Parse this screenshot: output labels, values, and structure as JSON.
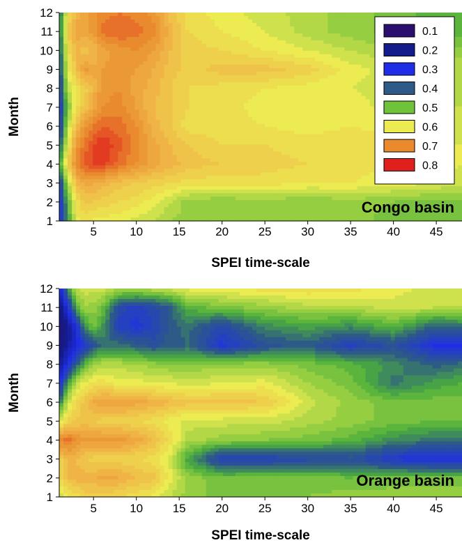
{
  "chart_data": [
    {
      "type": "heatmap",
      "annotation": "Congo basin",
      "xlabel": "SPEI time-scale",
      "ylabel": "Month",
      "xlim": [
        1,
        48
      ],
      "ylim": [
        1,
        12
      ],
      "xticks": [
        "5",
        "10",
        "15",
        "20",
        "25",
        "30",
        "35",
        "40",
        "45"
      ],
      "yticks": [
        "1",
        "2",
        "3",
        "4",
        "5",
        "6",
        "7",
        "8",
        "9",
        "10",
        "11",
        "12"
      ],
      "legend": {
        "placement": "top-right",
        "entries": [
          {
            "label": "0.1",
            "color": "#2a0f6e"
          },
          {
            "label": "0.2",
            "color": "#141c8c"
          },
          {
            "label": "0.3",
            "color": "#1f2ee6"
          },
          {
            "label": "0.4",
            "color": "#2d5a86"
          },
          {
            "label": "0.5",
            "color": "#6ec33a"
          },
          {
            "label": "0.6",
            "color": "#ecec52"
          },
          {
            "label": "0.7",
            "color": "#e98a2e"
          },
          {
            "label": "0.8",
            "color": "#e0201c"
          }
        ]
      },
      "x_samples": [
        1,
        2,
        3,
        4,
        5,
        6,
        8,
        10,
        12,
        14,
        16,
        20,
        25,
        30,
        35,
        40,
        45,
        48
      ],
      "y_samples": [
        1,
        2,
        3,
        4,
        5,
        6,
        7,
        8,
        9,
        10,
        11,
        12
      ],
      "values": [
        [
          0.3,
          0.45,
          0.58,
          0.6,
          0.58,
          0.58,
          0.58,
          0.56,
          0.55,
          0.53,
          0.52,
          0.51,
          0.52,
          0.51,
          0.52,
          0.5,
          0.5,
          0.49
        ],
        [
          0.3,
          0.48,
          0.6,
          0.63,
          0.63,
          0.62,
          0.61,
          0.6,
          0.58,
          0.55,
          0.52,
          0.51,
          0.52,
          0.51,
          0.52,
          0.51,
          0.5,
          0.5
        ],
        [
          0.33,
          0.54,
          0.65,
          0.68,
          0.67,
          0.66,
          0.64,
          0.63,
          0.62,
          0.61,
          0.6,
          0.6,
          0.6,
          0.59,
          0.59,
          0.58,
          0.57,
          0.56
        ],
        [
          0.45,
          0.63,
          0.72,
          0.76,
          0.77,
          0.78,
          0.74,
          0.71,
          0.68,
          0.66,
          0.64,
          0.63,
          0.62,
          0.61,
          0.6,
          0.59,
          0.58,
          0.57
        ],
        [
          0.38,
          0.58,
          0.7,
          0.74,
          0.77,
          0.79,
          0.76,
          0.72,
          0.68,
          0.65,
          0.63,
          0.61,
          0.61,
          0.6,
          0.61,
          0.6,
          0.58,
          0.57
        ],
        [
          0.33,
          0.54,
          0.65,
          0.7,
          0.73,
          0.75,
          0.74,
          0.71,
          0.66,
          0.63,
          0.6,
          0.6,
          0.59,
          0.58,
          0.59,
          0.58,
          0.56,
          0.55
        ],
        [
          0.32,
          0.5,
          0.6,
          0.64,
          0.68,
          0.71,
          0.72,
          0.69,
          0.65,
          0.63,
          0.61,
          0.6,
          0.58,
          0.58,
          0.58,
          0.56,
          0.55,
          0.55
        ],
        [
          0.35,
          0.55,
          0.6,
          0.62,
          0.66,
          0.7,
          0.71,
          0.68,
          0.66,
          0.63,
          0.61,
          0.6,
          0.59,
          0.58,
          0.57,
          0.56,
          0.55,
          0.54
        ],
        [
          0.36,
          0.58,
          0.64,
          0.7,
          0.67,
          0.69,
          0.7,
          0.69,
          0.67,
          0.64,
          0.62,
          0.64,
          0.64,
          0.62,
          0.58,
          0.56,
          0.55,
          0.55
        ],
        [
          0.38,
          0.6,
          0.66,
          0.64,
          0.65,
          0.68,
          0.7,
          0.71,
          0.69,
          0.65,
          0.62,
          0.61,
          0.59,
          0.57,
          0.55,
          0.53,
          0.52,
          0.52
        ],
        [
          0.4,
          0.63,
          0.68,
          0.68,
          0.7,
          0.74,
          0.75,
          0.74,
          0.72,
          0.66,
          0.61,
          0.59,
          0.57,
          0.54,
          0.52,
          0.5,
          0.48,
          0.48
        ],
        [
          0.4,
          0.6,
          0.66,
          0.68,
          0.7,
          0.72,
          0.73,
          0.72,
          0.7,
          0.64,
          0.6,
          0.58,
          0.56,
          0.54,
          0.52,
          0.5,
          0.48,
          0.48
        ]
      ]
    },
    {
      "type": "heatmap",
      "annotation": "Orange basin",
      "xlabel": "SPEI time-scale",
      "ylabel": "Month",
      "xlim": [
        1,
        48
      ],
      "ylim": [
        1,
        12
      ],
      "xticks": [
        "5",
        "10",
        "15",
        "20",
        "25",
        "30",
        "35",
        "40",
        "45"
      ],
      "yticks": [
        "1",
        "2",
        "3",
        "4",
        "5",
        "6",
        "7",
        "8",
        "9",
        "10",
        "11",
        "12"
      ],
      "x_samples": [
        1,
        2,
        3,
        4,
        5,
        6,
        8,
        10,
        12,
        14,
        16,
        20,
        25,
        30,
        35,
        40,
        45,
        48
      ],
      "y_samples": [
        1,
        2,
        3,
        4,
        5,
        6,
        7,
        8,
        9,
        10,
        11,
        12
      ],
      "values": [
        [
          0.56,
          0.58,
          0.6,
          0.62,
          0.62,
          0.62,
          0.61,
          0.6,
          0.58,
          0.55,
          0.52,
          0.5,
          0.5,
          0.51,
          0.52,
          0.52,
          0.52,
          0.52
        ],
        [
          0.6,
          0.65,
          0.66,
          0.66,
          0.66,
          0.68,
          0.67,
          0.65,
          0.64,
          0.58,
          0.52,
          0.5,
          0.5,
          0.5,
          0.49,
          0.5,
          0.5,
          0.5
        ],
        [
          0.62,
          0.66,
          0.65,
          0.63,
          0.62,
          0.62,
          0.62,
          0.61,
          0.6,
          0.56,
          0.46,
          0.34,
          0.35,
          0.36,
          0.38,
          0.32,
          0.3,
          0.3
        ],
        [
          0.72,
          0.74,
          0.71,
          0.69,
          0.7,
          0.7,
          0.7,
          0.68,
          0.65,
          0.6,
          0.54,
          0.52,
          0.51,
          0.5,
          0.48,
          0.44,
          0.42,
          0.42
        ],
        [
          0.55,
          0.62,
          0.63,
          0.64,
          0.63,
          0.62,
          0.62,
          0.61,
          0.6,
          0.58,
          0.56,
          0.56,
          0.56,
          0.54,
          0.52,
          0.5,
          0.49,
          0.49
        ],
        [
          0.42,
          0.56,
          0.61,
          0.64,
          0.67,
          0.69,
          0.69,
          0.68,
          0.67,
          0.65,
          0.64,
          0.64,
          0.63,
          0.56,
          0.52,
          0.5,
          0.5,
          0.5
        ],
        [
          0.3,
          0.45,
          0.55,
          0.58,
          0.6,
          0.6,
          0.58,
          0.58,
          0.57,
          0.57,
          0.56,
          0.57,
          0.58,
          0.53,
          0.5,
          0.42,
          0.46,
          0.47
        ],
        [
          0.2,
          0.3,
          0.4,
          0.48,
          0.52,
          0.54,
          0.54,
          0.53,
          0.52,
          0.51,
          0.51,
          0.52,
          0.52,
          0.5,
          0.48,
          0.44,
          0.4,
          0.42
        ],
        [
          0.16,
          0.22,
          0.28,
          0.33,
          0.38,
          0.42,
          0.42,
          0.4,
          0.38,
          0.4,
          0.41,
          0.32,
          0.38,
          0.4,
          0.34,
          0.38,
          0.3,
          0.3
        ],
        [
          0.15,
          0.2,
          0.3,
          0.45,
          0.5,
          0.45,
          0.34,
          0.32,
          0.35,
          0.4,
          0.42,
          0.36,
          0.44,
          0.46,
          0.44,
          0.48,
          0.4,
          0.42
        ],
        [
          0.18,
          0.3,
          0.48,
          0.53,
          0.52,
          0.5,
          0.36,
          0.34,
          0.36,
          0.4,
          0.48,
          0.5,
          0.52,
          0.54,
          0.54,
          0.56,
          0.55,
          0.55
        ],
        [
          0.25,
          0.45,
          0.55,
          0.56,
          0.56,
          0.56,
          0.54,
          0.54,
          0.55,
          0.56,
          0.58,
          0.59,
          0.6,
          0.61,
          0.6,
          0.58,
          0.56,
          0.56
        ]
      ]
    }
  ]
}
